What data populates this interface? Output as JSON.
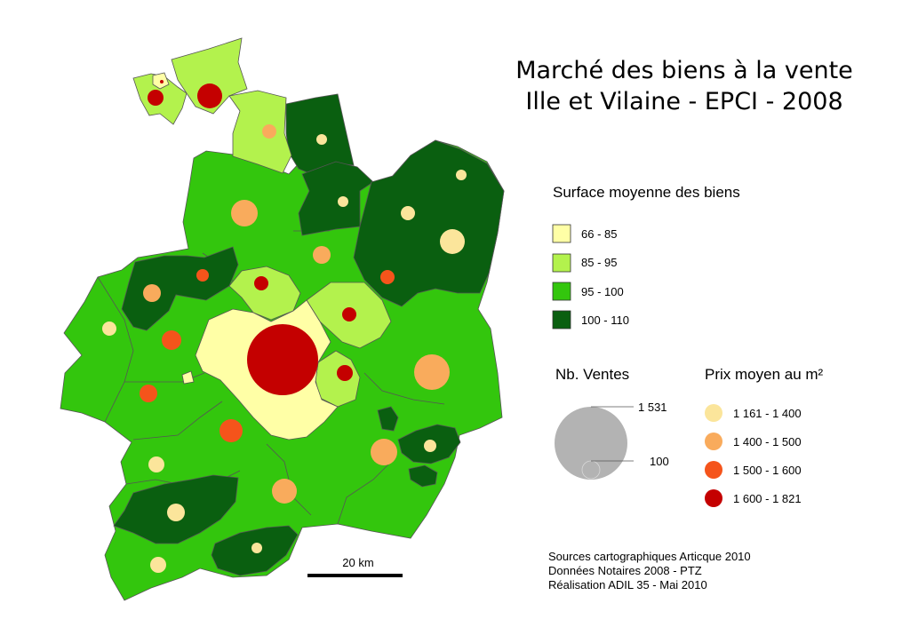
{
  "title": {
    "line1": "Marché des biens à la vente",
    "line2": "Ille et Vilaine - EPCI - 2008"
  },
  "surface_legend": {
    "heading": "Surface moyenne des biens",
    "classes": [
      {
        "label": "66 - 85",
        "color": "#ffffa6"
      },
      {
        "label": "85 - 95",
        "color": "#b3f24d"
      },
      {
        "label": "95 - 100",
        "color": "#33c60d"
      },
      {
        "label": "100 - 110",
        "color": "#0a5f10"
      }
    ]
  },
  "sales_legend": {
    "heading": "Nb. Ventes",
    "max_label": "1 531",
    "min_label": "100",
    "max_value": 1531,
    "min_value": 100,
    "circle_color": "#b3b3b3"
  },
  "price_legend": {
    "heading": "Prix moyen au m²",
    "classes": [
      {
        "label": "1 161 - 1 400",
        "color": "#fbe59b"
      },
      {
        "label": "1 400 - 1 500",
        "color": "#f9ab5c"
      },
      {
        "label": "1 500 - 1 600",
        "color": "#f5541b"
      },
      {
        "label": "1 600 - 1 821",
        "color": "#c40000"
      }
    ]
  },
  "scale": {
    "label": "20 km"
  },
  "credits": [
    "Sources cartographiques Articque 2010",
    "Données Notaires 2008 - PTZ",
    "Réalisation ADIL 35 - Mai 2010"
  ]
}
